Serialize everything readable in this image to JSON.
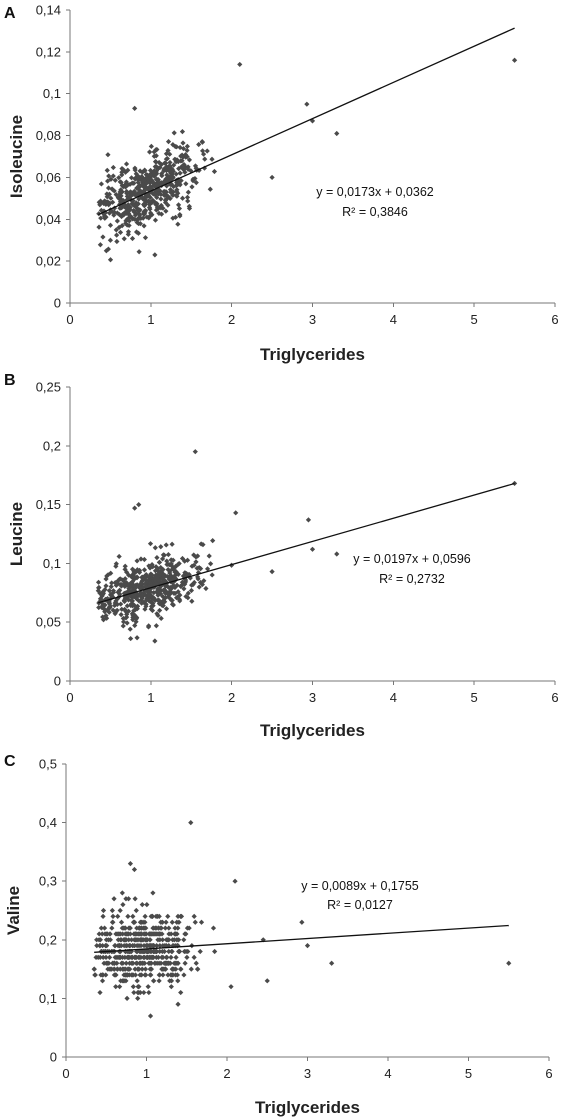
{
  "panels": [
    {
      "letter": "A"
    },
    {
      "letter": "B"
    },
    {
      "letter": "C"
    }
  ],
  "chart_data": [
    {
      "type": "scatter",
      "panel": "A",
      "xlabel": "Triglycerides",
      "ylabel": "Isoleucine",
      "xlim": [
        0,
        6
      ],
      "ylim": [
        0,
        0.14
      ],
      "xticks": [
        "0",
        "1",
        "2",
        "3",
        "4",
        "5",
        "6"
      ],
      "yticks": [
        "0",
        "0,02",
        "0,04",
        "0,06",
        "0,08",
        "0,1",
        "0,12",
        "0,14"
      ],
      "trendline": {
        "slope": 0.0173,
        "intercept": 0.0362,
        "x_range": [
          0.35,
          5.5
        ]
      },
      "equation": "y = 0,0173x + 0,0362",
      "r_squared": "R² = 0,3846",
      "cluster": {
        "n": 520,
        "x_center": 0.95,
        "x_sd": 0.32,
        "y_sd": 0.0085,
        "seed": 11,
        "x_min": 0.35,
        "x_max": 2.1
      },
      "outliers": [
        {
          "x": 2.1,
          "y": 0.114
        },
        {
          "x": 5.5,
          "y": 0.116
        },
        {
          "x": 2.93,
          "y": 0.095
        },
        {
          "x": 3.0,
          "y": 0.087
        },
        {
          "x": 3.3,
          "y": 0.081
        },
        {
          "x": 2.5,
          "y": 0.06
        },
        {
          "x": 1.05,
          "y": 0.023
        },
        {
          "x": 0.8,
          "y": 0.093
        },
        {
          "x": 0.5,
          "y": 0.03
        }
      ]
    },
    {
      "type": "scatter",
      "panel": "B",
      "xlabel": "Triglycerides",
      "ylabel": "Leucine",
      "xlim": [
        0,
        6
      ],
      "ylim": [
        0,
        0.25
      ],
      "xticks": [
        "0",
        "1",
        "2",
        "3",
        "4",
        "5",
        "6"
      ],
      "yticks": [
        "0",
        "0,05",
        "0,1",
        "0,15",
        "0,2",
        "0,25"
      ],
      "trendline": {
        "slope": 0.0197,
        "intercept": 0.0596,
        "x_range": [
          0.35,
          5.5
        ]
      },
      "equation": "y = 0,0197x + 0,0596",
      "r_squared": "R² = 0,2732",
      "cluster": {
        "n": 520,
        "x_center": 0.95,
        "x_sd": 0.32,
        "y_sd": 0.012,
        "seed": 23,
        "x_min": 0.35,
        "x_max": 2.1
      },
      "outliers": [
        {
          "x": 1.55,
          "y": 0.195
        },
        {
          "x": 5.5,
          "y": 0.168
        },
        {
          "x": 2.95,
          "y": 0.137
        },
        {
          "x": 2.05,
          "y": 0.143
        },
        {
          "x": 3.3,
          "y": 0.108
        },
        {
          "x": 3.0,
          "y": 0.112
        },
        {
          "x": 2.5,
          "y": 0.093
        },
        {
          "x": 1.05,
          "y": 0.034
        },
        {
          "x": 0.85,
          "y": 0.15
        },
        {
          "x": 0.8,
          "y": 0.147
        }
      ]
    },
    {
      "type": "scatter",
      "panel": "C",
      "xlabel": "Triglycerides",
      "ylabel": "Valine",
      "xlim": [
        0,
        6
      ],
      "ylim": [
        0,
        0.5
      ],
      "xticks": [
        "0",
        "1",
        "2",
        "3",
        "4",
        "5",
        "6"
      ],
      "yticks": [
        "0",
        "0,1",
        "0,2",
        "0,3",
        "0,4",
        "0,5"
      ],
      "trendline": {
        "slope": 0.0089,
        "intercept": 0.1755,
        "x_range": [
          0.35,
          5.5
        ]
      },
      "equation": "y = 0,0089x + 0,1755",
      "r_squared": "R² = 0,0127",
      "cluster": {
        "n": 520,
        "x_center": 0.95,
        "x_sd": 0.32,
        "y_sd": 0.033,
        "seed": 37,
        "x_min": 0.35,
        "x_max": 2.1,
        "y_quantum": 0.01
      },
      "outliers": [
        {
          "x": 1.55,
          "y": 0.4
        },
        {
          "x": 0.8,
          "y": 0.33
        },
        {
          "x": 0.85,
          "y": 0.32
        },
        {
          "x": 2.1,
          "y": 0.3
        },
        {
          "x": 2.93,
          "y": 0.23
        },
        {
          "x": 3.0,
          "y": 0.19
        },
        {
          "x": 3.3,
          "y": 0.16
        },
        {
          "x": 5.5,
          "y": 0.16
        },
        {
          "x": 2.05,
          "y": 0.12
        },
        {
          "x": 2.5,
          "y": 0.13
        },
        {
          "x": 2.45,
          "y": 0.2
        },
        {
          "x": 1.05,
          "y": 0.07
        }
      ]
    }
  ]
}
